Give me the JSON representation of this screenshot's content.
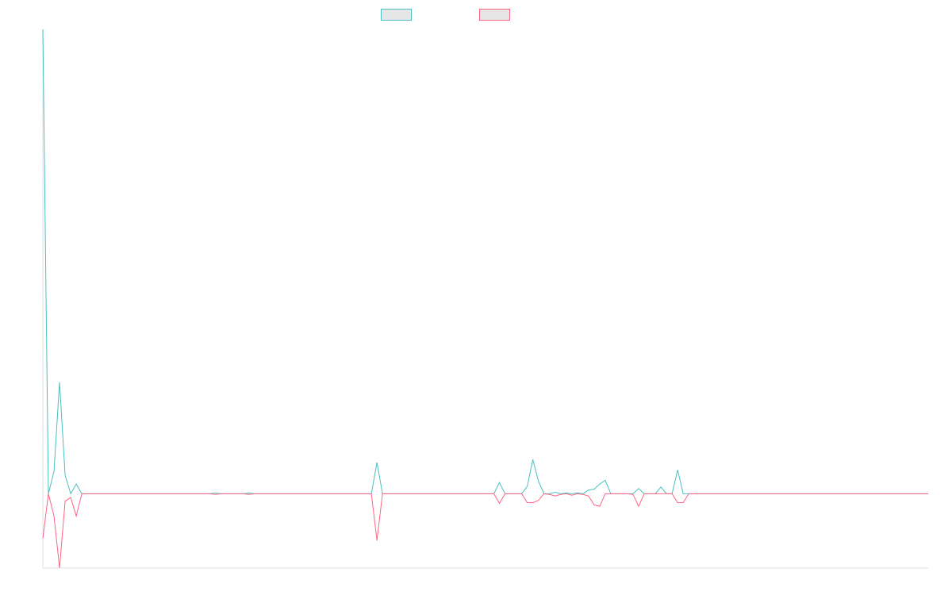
{
  "chart_data": {
    "type": "line",
    "title": "",
    "xlabel": "",
    "ylabel": "",
    "grid": false,
    "legend_placement": "top-center",
    "x_count": 160,
    "ylim": [
      -100,
      625
    ],
    "series": [
      {
        "name": "",
        "color": "#4bc0c0",
        "fill": "#e6e6e6",
        "points": [
          [
            0,
            625
          ],
          [
            1,
            0
          ],
          [
            2,
            30
          ],
          [
            3,
            150
          ],
          [
            4,
            25
          ],
          [
            5,
            0
          ],
          [
            6,
            13
          ],
          [
            7,
            0
          ],
          [
            30,
            0
          ],
          [
            31,
            1
          ],
          [
            32,
            0
          ],
          [
            36,
            0
          ],
          [
            37,
            1
          ],
          [
            38,
            0
          ],
          [
            59,
            0
          ],
          [
            60,
            42
          ],
          [
            61,
            0
          ],
          [
            81,
            0
          ],
          [
            82,
            15
          ],
          [
            83,
            0
          ],
          [
            86,
            0
          ],
          [
            87,
            10
          ],
          [
            88,
            46
          ],
          [
            89,
            17
          ],
          [
            90,
            0
          ],
          [
            91,
            0
          ],
          [
            92,
            2
          ],
          [
            93,
            0
          ],
          [
            94,
            1
          ],
          [
            95,
            0
          ],
          [
            96,
            1
          ],
          [
            97,
            0
          ],
          [
            98,
            5
          ],
          [
            99,
            6
          ],
          [
            100,
            13
          ],
          [
            101,
            18
          ],
          [
            102,
            0
          ],
          [
            105,
            0
          ],
          [
            106,
            0
          ],
          [
            107,
            7
          ],
          [
            108,
            0
          ],
          [
            110,
            0
          ],
          [
            111,
            9
          ],
          [
            112,
            0
          ],
          [
            113,
            0
          ],
          [
            114,
            32
          ],
          [
            115,
            0
          ],
          [
            159,
            0
          ]
        ]
      },
      {
        "name": "",
        "color": "#ff6384",
        "fill": "#e6e6e6",
        "points": [
          [
            0,
            -60
          ],
          [
            1,
            0
          ],
          [
            2,
            -30
          ],
          [
            3,
            -100
          ],
          [
            4,
            -10
          ],
          [
            5,
            -5
          ],
          [
            6,
            -30
          ],
          [
            7,
            0
          ],
          [
            30,
            0
          ],
          [
            31,
            -1
          ],
          [
            32,
            0
          ],
          [
            36,
            0
          ],
          [
            37,
            -1
          ],
          [
            38,
            0
          ],
          [
            59,
            0
          ],
          [
            60,
            -63
          ],
          [
            61,
            0
          ],
          [
            81,
            0
          ],
          [
            82,
            -13
          ],
          [
            83,
            0
          ],
          [
            86,
            0
          ],
          [
            87,
            -12
          ],
          [
            88,
            -12
          ],
          [
            89,
            -9
          ],
          [
            90,
            0
          ],
          [
            91,
            -1
          ],
          [
            92,
            -3
          ],
          [
            93,
            -1
          ],
          [
            94,
            0
          ],
          [
            95,
            -2
          ],
          [
            96,
            0
          ],
          [
            97,
            -1
          ],
          [
            98,
            -3
          ],
          [
            99,
            -15
          ],
          [
            100,
            -17
          ],
          [
            101,
            0
          ],
          [
            105,
            0
          ],
          [
            106,
            -1
          ],
          [
            107,
            -17
          ],
          [
            108,
            0
          ],
          [
            110,
            0
          ],
          [
            111,
            0
          ],
          [
            112,
            0
          ],
          [
            113,
            0
          ],
          [
            114,
            -12
          ],
          [
            115,
            -12
          ],
          [
            116,
            0
          ],
          [
            159,
            0
          ]
        ]
      }
    ]
  }
}
